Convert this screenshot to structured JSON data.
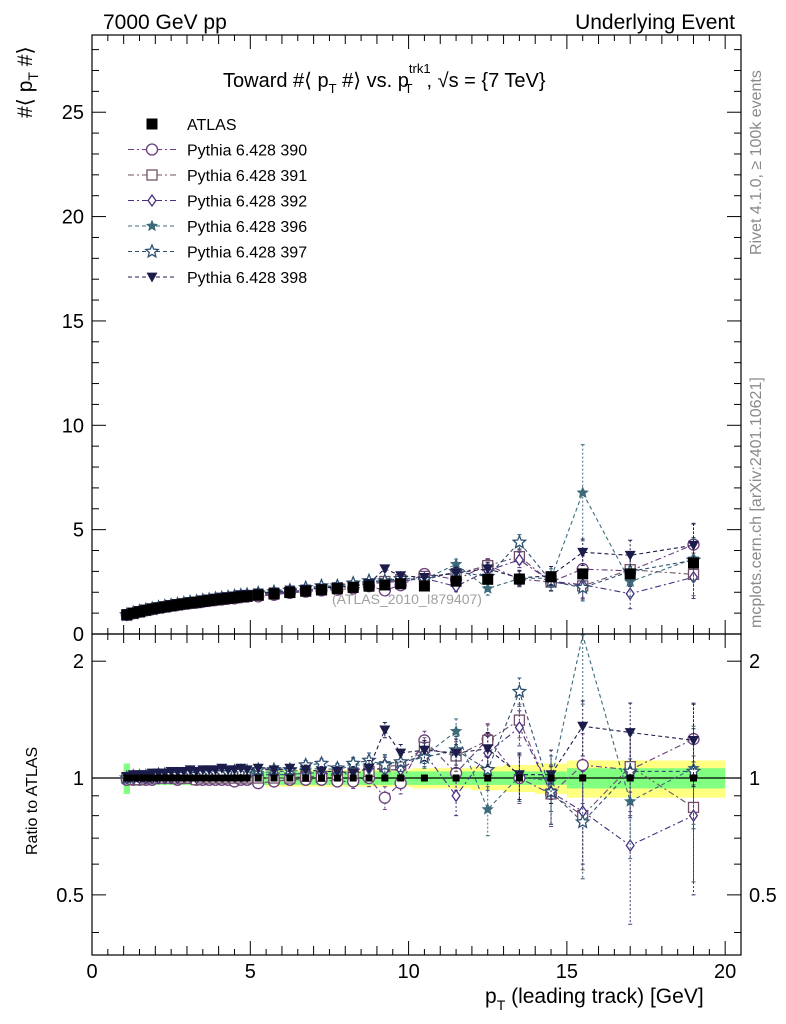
{
  "header": {
    "left": "7000 GeV pp",
    "right": "Underlying Event"
  },
  "plot": {
    "title_main": "Toward #⟨ p",
    "title_sub_t": "T",
    "title_mid": " #⟩ vs. p",
    "title_sup": "trk1",
    "title_sub_t2": "T",
    "title_end": ", √s = {7 TeV}",
    "ylabel_main": "#⟨ p",
    "ylabel_sub": "T",
    "ylabel_end": " #⟩",
    "ratio_ylabel": "Ratio to ATLAS",
    "xlabel_main": "p",
    "xlabel_sub": "T",
    "xlabel_end": " (leading track) [GeV]",
    "watermark": "(ATLAS_2010_I879407)",
    "side_top": "Rivet 4.1.0, ≥ 100k events",
    "side_bottom": "mcplots.cern.ch [arXiv:2401.10621]"
  },
  "chart_data": {
    "type": "scatter",
    "xlim": [
      0,
      20.5
    ],
    "ylim": [
      0,
      28.7
    ],
    "ratio_ylim": [
      0.35,
      2.35
    ],
    "x_ticks": [
      0,
      5,
      10,
      15,
      20
    ],
    "y_ticks": [
      0,
      5,
      10,
      15,
      20,
      25
    ],
    "ratio_y_ticks": [
      0.5,
      1,
      2
    ],
    "x": [
      1.1,
      1.3,
      1.5,
      1.7,
      1.9,
      2.1,
      2.3,
      2.5,
      2.7,
      2.9,
      3.1,
      3.3,
      3.5,
      3.7,
      3.9,
      4.1,
      4.3,
      4.5,
      4.7,
      4.9,
      5.25,
      5.75,
      6.25,
      6.75,
      7.25,
      7.75,
      8.25,
      8.75,
      9.25,
      9.75,
      10.5,
      11.5,
      12.5,
      13.5,
      14.5,
      15.5,
      17.0,
      19.0
    ],
    "series": [
      {
        "name": "ATLAS",
        "color": "#000000",
        "marker": "square-filled",
        "values": [
          0.92,
          1.0,
          1.07,
          1.14,
          1.2,
          1.25,
          1.3,
          1.35,
          1.4,
          1.44,
          1.48,
          1.52,
          1.56,
          1.6,
          1.64,
          1.67,
          1.71,
          1.74,
          1.78,
          1.81,
          1.86,
          1.92,
          1.99,
          2.05,
          2.11,
          2.17,
          2.23,
          2.29,
          2.35,
          2.41,
          2.3,
          2.53,
          2.62,
          2.63,
          2.74,
          2.88,
          2.88,
          3.4
        ],
        "band_inner": [
          0.09,
          0.04,
          0.04,
          0.04,
          0.04,
          0.04,
          0.04,
          0.04,
          0.04,
          0.04,
          0.04,
          0.04,
          0.04,
          0.04,
          0.04,
          0.04,
          0.04,
          0.04,
          0.04,
          0.04,
          0.04,
          0.04,
          0.04,
          0.04,
          0.04,
          0.04,
          0.04,
          0.04,
          0.04,
          0.04,
          0.04,
          0.04,
          0.04,
          0.04,
          0.04,
          0.06,
          0.06,
          0.06
        ],
        "band_outer": [
          0.09,
          0.04,
          0.04,
          0.04,
          0.04,
          0.04,
          0.04,
          0.04,
          0.04,
          0.04,
          0.04,
          0.04,
          0.04,
          0.04,
          0.04,
          0.04,
          0.04,
          0.04,
          0.04,
          0.04,
          0.04,
          0.05,
          0.05,
          0.05,
          0.05,
          0.05,
          0.05,
          0.05,
          0.05,
          0.05,
          0.06,
          0.06,
          0.07,
          0.08,
          0.09,
          0.11,
          0.11,
          0.11
        ]
      },
      {
        "name": "Pythia 6.428 390",
        "color": "#6a3f7e",
        "marker": "circle-open",
        "ratio": [
          0.99,
          0.99,
          0.99,
          0.99,
          0.99,
          1.0,
          1.0,
          1.0,
          0.99,
          1.0,
          1.0,
          0.99,
          0.99,
          0.99,
          0.99,
          0.99,
          0.99,
          0.98,
          0.99,
          0.99,
          0.97,
          0.98,
          0.99,
          0.99,
          0.99,
          0.98,
          0.98,
          1.0,
          0.89,
          0.97,
          1.25,
          1.03,
          1.26,
          1.0,
          0.91,
          1.08,
          1.05,
          1.26
        ],
        "ratio_err": [
          0.01,
          0.01,
          0.01,
          0.01,
          0.01,
          0.01,
          0.01,
          0.01,
          0.01,
          0.01,
          0.01,
          0.01,
          0.01,
          0.01,
          0.01,
          0.01,
          0.01,
          0.01,
          0.01,
          0.01,
          0.02,
          0.02,
          0.02,
          0.03,
          0.03,
          0.03,
          0.04,
          0.05,
          0.06,
          0.06,
          0.07,
          0.1,
          0.12,
          0.14,
          0.16,
          0.22,
          0.25,
          0.3
        ]
      },
      {
        "name": "Pythia 6.428 391",
        "color": "#6f5068",
        "marker": "square-open",
        "ratio": [
          1.0,
          0.99,
          0.99,
          1.0,
          1.0,
          1.0,
          1.0,
          1.0,
          1.0,
          1.0,
          1.0,
          0.99,
          1.0,
          1.0,
          1.0,
          1.0,
          1.0,
          1.0,
          1.0,
          1.0,
          1.0,
          1.0,
          1.0,
          1.01,
          1.01,
          1.02,
          1.03,
          1.04,
          1.07,
          1.08,
          1.2,
          1.14,
          1.25,
          1.41,
          0.91,
          0.8,
          1.07,
          0.84
        ],
        "ratio_err": [
          0.01,
          0.01,
          0.01,
          0.01,
          0.01,
          0.01,
          0.01,
          0.01,
          0.01,
          0.01,
          0.01,
          0.01,
          0.01,
          0.01,
          0.01,
          0.01,
          0.01,
          0.01,
          0.01,
          0.01,
          0.02,
          0.02,
          0.02,
          0.03,
          0.03,
          0.03,
          0.04,
          0.05,
          0.06,
          0.06,
          0.07,
          0.1,
          0.12,
          0.14,
          0.16,
          0.22,
          0.25,
          0.3
        ]
      },
      {
        "name": "Pythia 6.428 392",
        "color": "#4a3080",
        "marker": "diamond-open",
        "ratio": [
          1.0,
          1.0,
          1.0,
          1.0,
          1.0,
          1.0,
          1.0,
          1.0,
          1.0,
          1.01,
          1.01,
          1.0,
          1.01,
          1.01,
          1.01,
          1.01,
          1.01,
          1.01,
          1.01,
          1.01,
          1.02,
          1.02,
          1.02,
          1.03,
          1.03,
          1.02,
          1.05,
          1.06,
          1.05,
          1.05,
          1.16,
          0.9,
          1.16,
          1.35,
          0.92,
          0.82,
          0.67,
          0.8
        ],
        "ratio_err": [
          0.01,
          0.01,
          0.01,
          0.01,
          0.01,
          0.01,
          0.01,
          0.01,
          0.01,
          0.01,
          0.01,
          0.01,
          0.01,
          0.01,
          0.01,
          0.01,
          0.01,
          0.01,
          0.01,
          0.01,
          0.02,
          0.02,
          0.02,
          0.03,
          0.03,
          0.03,
          0.04,
          0.05,
          0.06,
          0.06,
          0.07,
          0.1,
          0.12,
          0.14,
          0.16,
          0.22,
          0.25,
          0.3
        ]
      },
      {
        "name": "Pythia 6.428 396",
        "color": "#3d6b7c",
        "marker": "star-filled",
        "ratio": [
          1.0,
          1.01,
          1.01,
          1.01,
          1.02,
          1.02,
          1.02,
          1.02,
          1.02,
          1.02,
          1.02,
          1.02,
          1.02,
          1.02,
          1.02,
          1.03,
          1.02,
          1.03,
          1.03,
          1.03,
          1.03,
          1.04,
          1.04,
          1.05,
          1.06,
          1.05,
          1.08,
          1.08,
          1.09,
          1.1,
          1.14,
          1.32,
          0.83,
          1.01,
          0.98,
          2.35,
          0.87,
          1.06
        ],
        "ratio_err": [
          0.01,
          0.01,
          0.01,
          0.01,
          0.01,
          0.01,
          0.01,
          0.01,
          0.01,
          0.01,
          0.01,
          0.01,
          0.01,
          0.01,
          0.01,
          0.01,
          0.01,
          0.01,
          0.01,
          0.01,
          0.02,
          0.02,
          0.02,
          0.03,
          0.03,
          0.03,
          0.04,
          0.05,
          0.06,
          0.06,
          0.07,
          0.1,
          0.12,
          0.14,
          0.16,
          0.8,
          0.25,
          0.3
        ]
      },
      {
        "name": "Pythia 6.428 397",
        "color": "#2e5070",
        "marker": "star-open",
        "ratio": [
          1.0,
          1.01,
          1.01,
          1.01,
          1.01,
          1.02,
          1.02,
          1.02,
          1.02,
          1.02,
          1.03,
          1.02,
          1.03,
          1.03,
          1.03,
          1.03,
          1.03,
          1.04,
          1.04,
          1.04,
          1.05,
          1.05,
          1.05,
          1.08,
          1.09,
          1.06,
          1.09,
          1.11,
          1.08,
          1.1,
          1.13,
          1.18,
          1.05,
          1.67,
          0.92,
          0.77,
          1.04,
          1.04
        ],
        "ratio_err": [
          0.01,
          0.01,
          0.01,
          0.01,
          0.01,
          0.01,
          0.01,
          0.01,
          0.01,
          0.01,
          0.01,
          0.01,
          0.01,
          0.01,
          0.01,
          0.01,
          0.01,
          0.01,
          0.01,
          0.01,
          0.02,
          0.02,
          0.02,
          0.03,
          0.03,
          0.03,
          0.04,
          0.05,
          0.06,
          0.06,
          0.07,
          0.1,
          0.12,
          0.14,
          0.16,
          0.22,
          0.25,
          0.3
        ]
      },
      {
        "name": "Pythia 6.428 398",
        "color": "#1c1c4a",
        "marker": "triangle-down-filled",
        "ratio": [
          1.01,
          1.02,
          1.02,
          1.02,
          1.03,
          1.03,
          1.03,
          1.04,
          1.04,
          1.04,
          1.05,
          1.04,
          1.05,
          1.05,
          1.05,
          1.06,
          1.05,
          1.05,
          1.06,
          1.05,
          1.06,
          1.05,
          1.06,
          1.05,
          1.04,
          1.04,
          1.03,
          1.06,
          1.33,
          1.16,
          1.18,
          1.16,
          1.19,
          1.02,
          1.02,
          1.36,
          1.31,
          1.25
        ],
        "ratio_err": [
          0.01,
          0.01,
          0.01,
          0.01,
          0.01,
          0.01,
          0.01,
          0.01,
          0.01,
          0.01,
          0.01,
          0.01,
          0.01,
          0.01,
          0.01,
          0.01,
          0.01,
          0.01,
          0.01,
          0.01,
          0.02,
          0.02,
          0.02,
          0.03,
          0.03,
          0.03,
          0.04,
          0.05,
          0.06,
          0.06,
          0.07,
          0.1,
          0.12,
          0.14,
          0.16,
          0.22,
          0.25,
          0.3
        ]
      }
    ],
    "legend_position": "top-left"
  }
}
